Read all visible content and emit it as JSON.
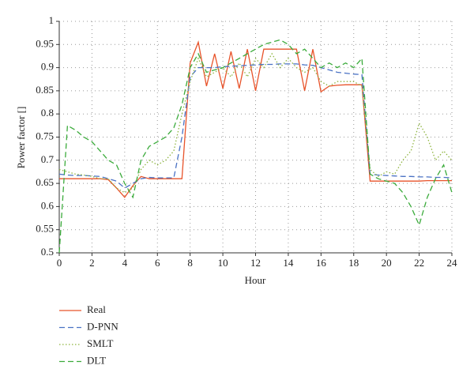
{
  "chart_data": {
    "type": "line",
    "xlabel": "Hour",
    "ylabel": "Power factor []",
    "x": [
      0,
      0.5,
      1,
      1.5,
      2,
      2.5,
      3,
      3.5,
      4,
      4.5,
      5,
      5.5,
      6,
      6.5,
      7,
      7.5,
      8,
      8.5,
      9,
      9.5,
      10,
      10.5,
      11,
      11.5,
      12,
      12.5,
      13,
      13.5,
      14,
      14.5,
      15,
      15.5,
      16,
      16.5,
      17,
      17.5,
      18,
      18.5,
      19,
      19.5,
      20,
      20.5,
      21,
      21.5,
      22,
      22.5,
      23,
      23.5,
      24
    ],
    "series": [
      {
        "name": "Real",
        "color": "#e8532a",
        "dash": "solid",
        "values": [
          0.66,
          0.66,
          0.66,
          0.66,
          0.66,
          0.66,
          0.658,
          0.64,
          0.62,
          0.645,
          0.665,
          0.66,
          0.66,
          0.66,
          0.66,
          0.66,
          0.91,
          0.955,
          0.86,
          0.93,
          0.855,
          0.935,
          0.855,
          0.94,
          0.85,
          0.94,
          0.94,
          0.94,
          0.94,
          0.94,
          0.85,
          0.94,
          0.848,
          0.86,
          0.862,
          0.863,
          0.863,
          0.863,
          0.655,
          0.655,
          0.655,
          0.655,
          0.655,
          0.655,
          0.655,
          0.656,
          0.656,
          0.656,
          0.656
        ]
      },
      {
        "name": "D-PNN",
        "color": "#4a72c4",
        "dash": "dashed",
        "values": [
          0.67,
          0.668,
          0.667,
          0.667,
          0.666,
          0.665,
          0.66,
          0.655,
          0.64,
          0.65,
          0.66,
          0.663,
          0.662,
          0.662,
          0.662,
          0.75,
          0.88,
          0.9,
          0.9,
          0.9,
          0.902,
          0.903,
          0.904,
          0.905,
          0.906,
          0.907,
          0.907,
          0.908,
          0.908,
          0.908,
          0.906,
          0.905,
          0.9,
          0.895,
          0.89,
          0.888,
          0.886,
          0.885,
          0.67,
          0.668,
          0.667,
          0.666,
          0.665,
          0.665,
          0.664,
          0.664,
          0.663,
          0.663,
          0.662
        ]
      },
      {
        "name": "SMLT",
        "color": "#8db43e",
        "dash": "dotted",
        "values": [
          0.68,
          0.675,
          0.67,
          0.668,
          0.665,
          0.66,
          0.66,
          0.64,
          0.63,
          0.64,
          0.68,
          0.7,
          0.69,
          0.7,
          0.72,
          0.8,
          0.87,
          0.92,
          0.88,
          0.89,
          0.9,
          0.88,
          0.91,
          0.88,
          0.92,
          0.9,
          0.93,
          0.9,
          0.92,
          0.9,
          0.89,
          0.9,
          0.87,
          0.86,
          0.87,
          0.87,
          0.87,
          0.86,
          0.68,
          0.665,
          0.675,
          0.67,
          0.7,
          0.72,
          0.78,
          0.75,
          0.7,
          0.72,
          0.7
        ]
      },
      {
        "name": "DLT",
        "color": "#3bab3b",
        "dash": "dashed",
        "values": [
          0.5,
          0.775,
          0.765,
          0.75,
          0.74,
          0.72,
          0.7,
          0.69,
          0.65,
          0.62,
          0.7,
          0.73,
          0.74,
          0.75,
          0.77,
          0.82,
          0.9,
          0.93,
          0.89,
          0.895,
          0.9,
          0.91,
          0.92,
          0.93,
          0.94,
          0.95,
          0.955,
          0.96,
          0.95,
          0.93,
          0.94,
          0.92,
          0.9,
          0.91,
          0.9,
          0.91,
          0.9,
          0.92,
          0.67,
          0.66,
          0.655,
          0.65,
          0.63,
          0.6,
          0.56,
          0.62,
          0.66,
          0.69,
          0.63
        ]
      }
    ],
    "xlim": [
      0,
      24
    ],
    "xticks": [
      0,
      2,
      4,
      6,
      8,
      10,
      12,
      14,
      16,
      18,
      20,
      22,
      24
    ],
    "ylim": [
      0.5,
      1
    ],
    "yticks": [
      0.5,
      0.55,
      0.6,
      0.65,
      0.7,
      0.75,
      0.8,
      0.85,
      0.9,
      0.95,
      1
    ],
    "grid": true,
    "legend": "below"
  }
}
